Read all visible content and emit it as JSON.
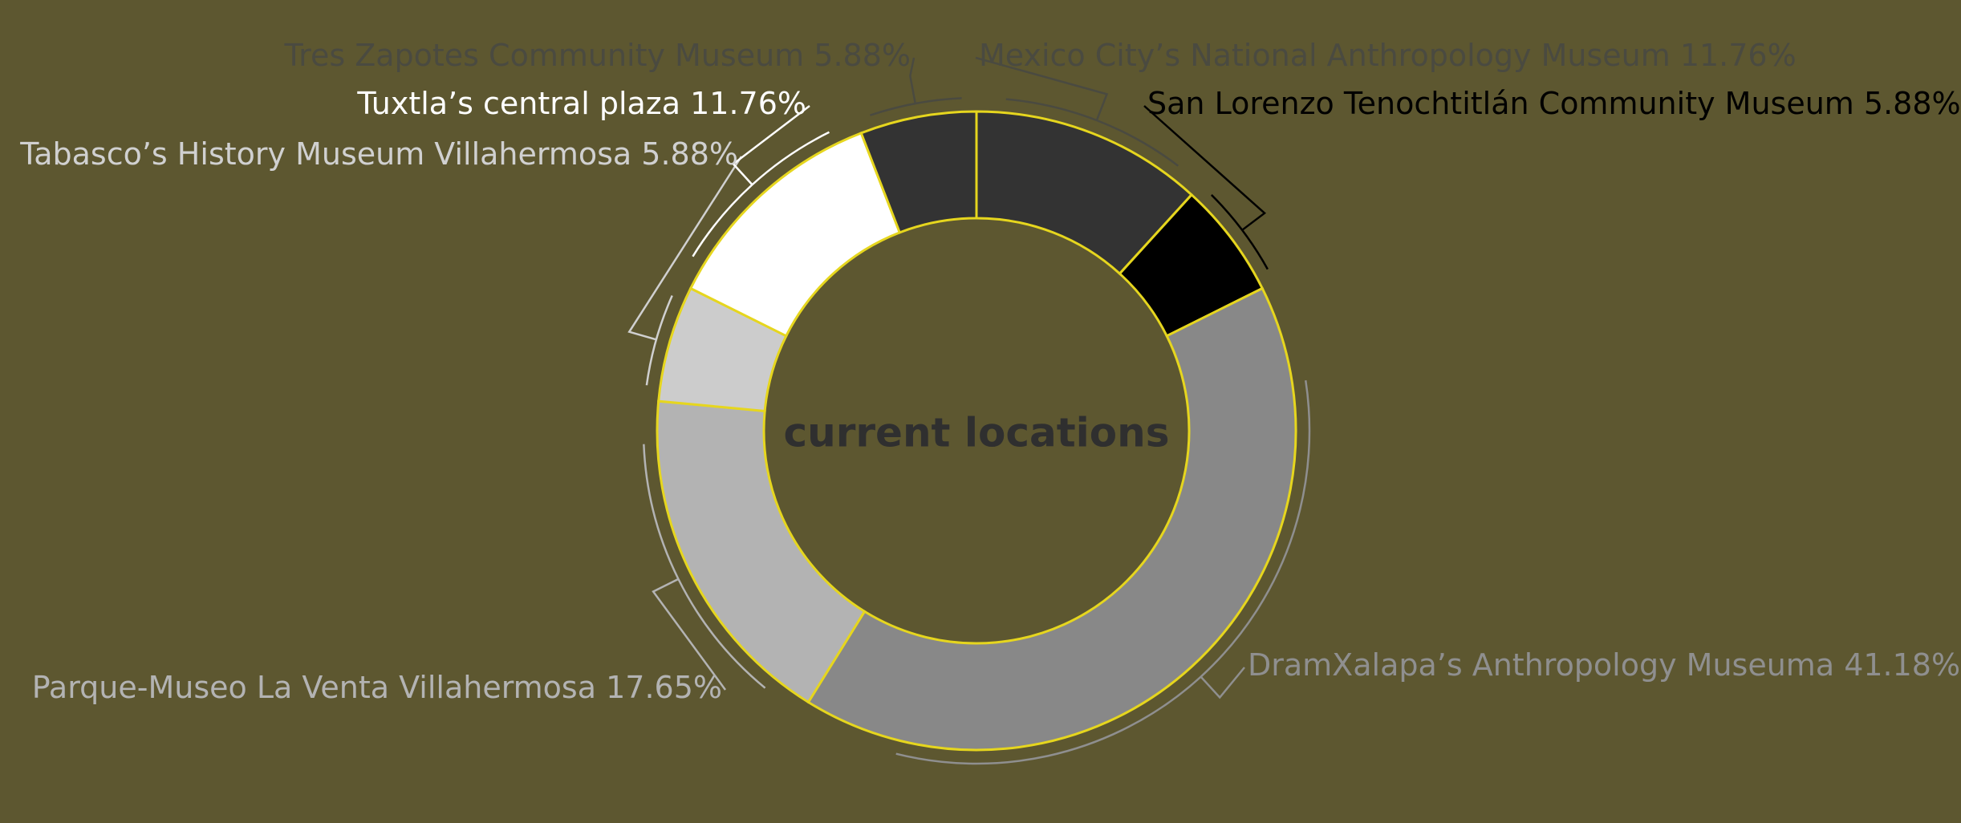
{
  "chart_data": {
    "type": "pie",
    "variant": "donut",
    "center_label": "current locations",
    "legend": "none",
    "slices": [
      {
        "label": "Mexico City’s National Anthropology Museum",
        "display": "Mexico City’s National Anthropology Museum 11.76%",
        "value": 11.76,
        "color": "#333333",
        "label_color": "#4a4a40"
      },
      {
        "label": "San Lorenzo Tenochtitlán Community Museum",
        "display": "San Lorenzo Tenochtitlán Community Museum 5.88%",
        "value": 5.88,
        "color": "#000000",
        "label_color": "#000000"
      },
      {
        "label": "DramXalapa’s Anthropology Museuma",
        "display": "DramXalapa’s Anthropology Museuma 41.18%",
        "value": 41.18,
        "color": "#888888",
        "label_color": "#8f8f8f"
      },
      {
        "label": "Parque-Museo La Venta Villahermosa",
        "display": "Parque-Museo La Venta Villahermosa 17.65%",
        "value": 17.65,
        "color": "#b3b3b3",
        "label_color": "#b3b3b3"
      },
      {
        "label": "Tabasco’s History Museum Villahermosa",
        "display": "Tabasco’s History Museum Villahermosa 5.88%",
        "value": 5.88,
        "color": "#cccccc",
        "label_color": "#d0d0d0"
      },
      {
        "label": "Tuxtla’s central plaza",
        "display": "Tuxtla’s central plaza 11.76%",
        "value": 11.76,
        "color": "#ffffff",
        "label_color": "#ffffff"
      },
      {
        "label": "Tres Zapotes Community Museum",
        "display": "Tres Zapotes Community Museum 5.88%",
        "value": 5.88,
        "color": "#333333",
        "label_color": "#4a4a40"
      }
    ]
  }
}
